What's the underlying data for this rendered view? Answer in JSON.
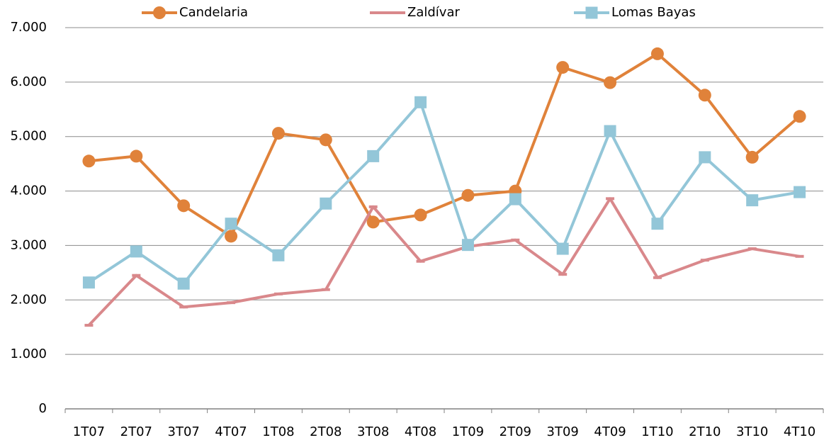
{
  "chart_data": {
    "type": "line",
    "categories": [
      "1T07",
      "2T07",
      "3T07",
      "4T07",
      "1T08",
      "2T08",
      "3T08",
      "4T08",
      "1T09",
      "2T09",
      "3T09",
      "4T09",
      "1T10",
      "2T10",
      "3T10",
      "4T10"
    ],
    "series": [
      {
        "name": "Candelaria",
        "color": "#e0823a",
        "marker": "circle",
        "values": [
          4550,
          4640,
          3730,
          3170,
          5060,
          4940,
          3430,
          3560,
          3920,
          4000,
          6270,
          5990,
          6520,
          5760,
          4620,
          5370
        ]
      },
      {
        "name": "Zaldívar",
        "color": "#d9888b",
        "marker": "dash",
        "values": [
          1535,
          2450,
          1870,
          1950,
          2110,
          2190,
          3710,
          2710,
          2980,
          3100,
          2470,
          3860,
          2410,
          2730,
          2940,
          2800
        ]
      },
      {
        "name": "Lomas Bayas",
        "color": "#93c6d8",
        "marker": "square",
        "values": [
          2320,
          2890,
          2300,
          3400,
          2820,
          3770,
          4640,
          5630,
          3010,
          3850,
          2940,
          5100,
          3400,
          4620,
          3830,
          3980
        ]
      }
    ],
    "ylim": [
      0,
      7000
    ],
    "yticks": [
      0,
      {
        "value": 1000,
        "label": "1.000"
      },
      {
        "value": 2000,
        "label": "2.000"
      },
      {
        "value": 3000,
        "label": "3.000"
      },
      {
        "value": 4000,
        "label": "4.000"
      },
      {
        "value": 5000,
        "label": "5.000"
      },
      {
        "value": 6000,
        "label": "6.000"
      },
      {
        "value": 7000,
        "label": "7.000"
      }
    ],
    "grid": true,
    "legend": "top"
  }
}
